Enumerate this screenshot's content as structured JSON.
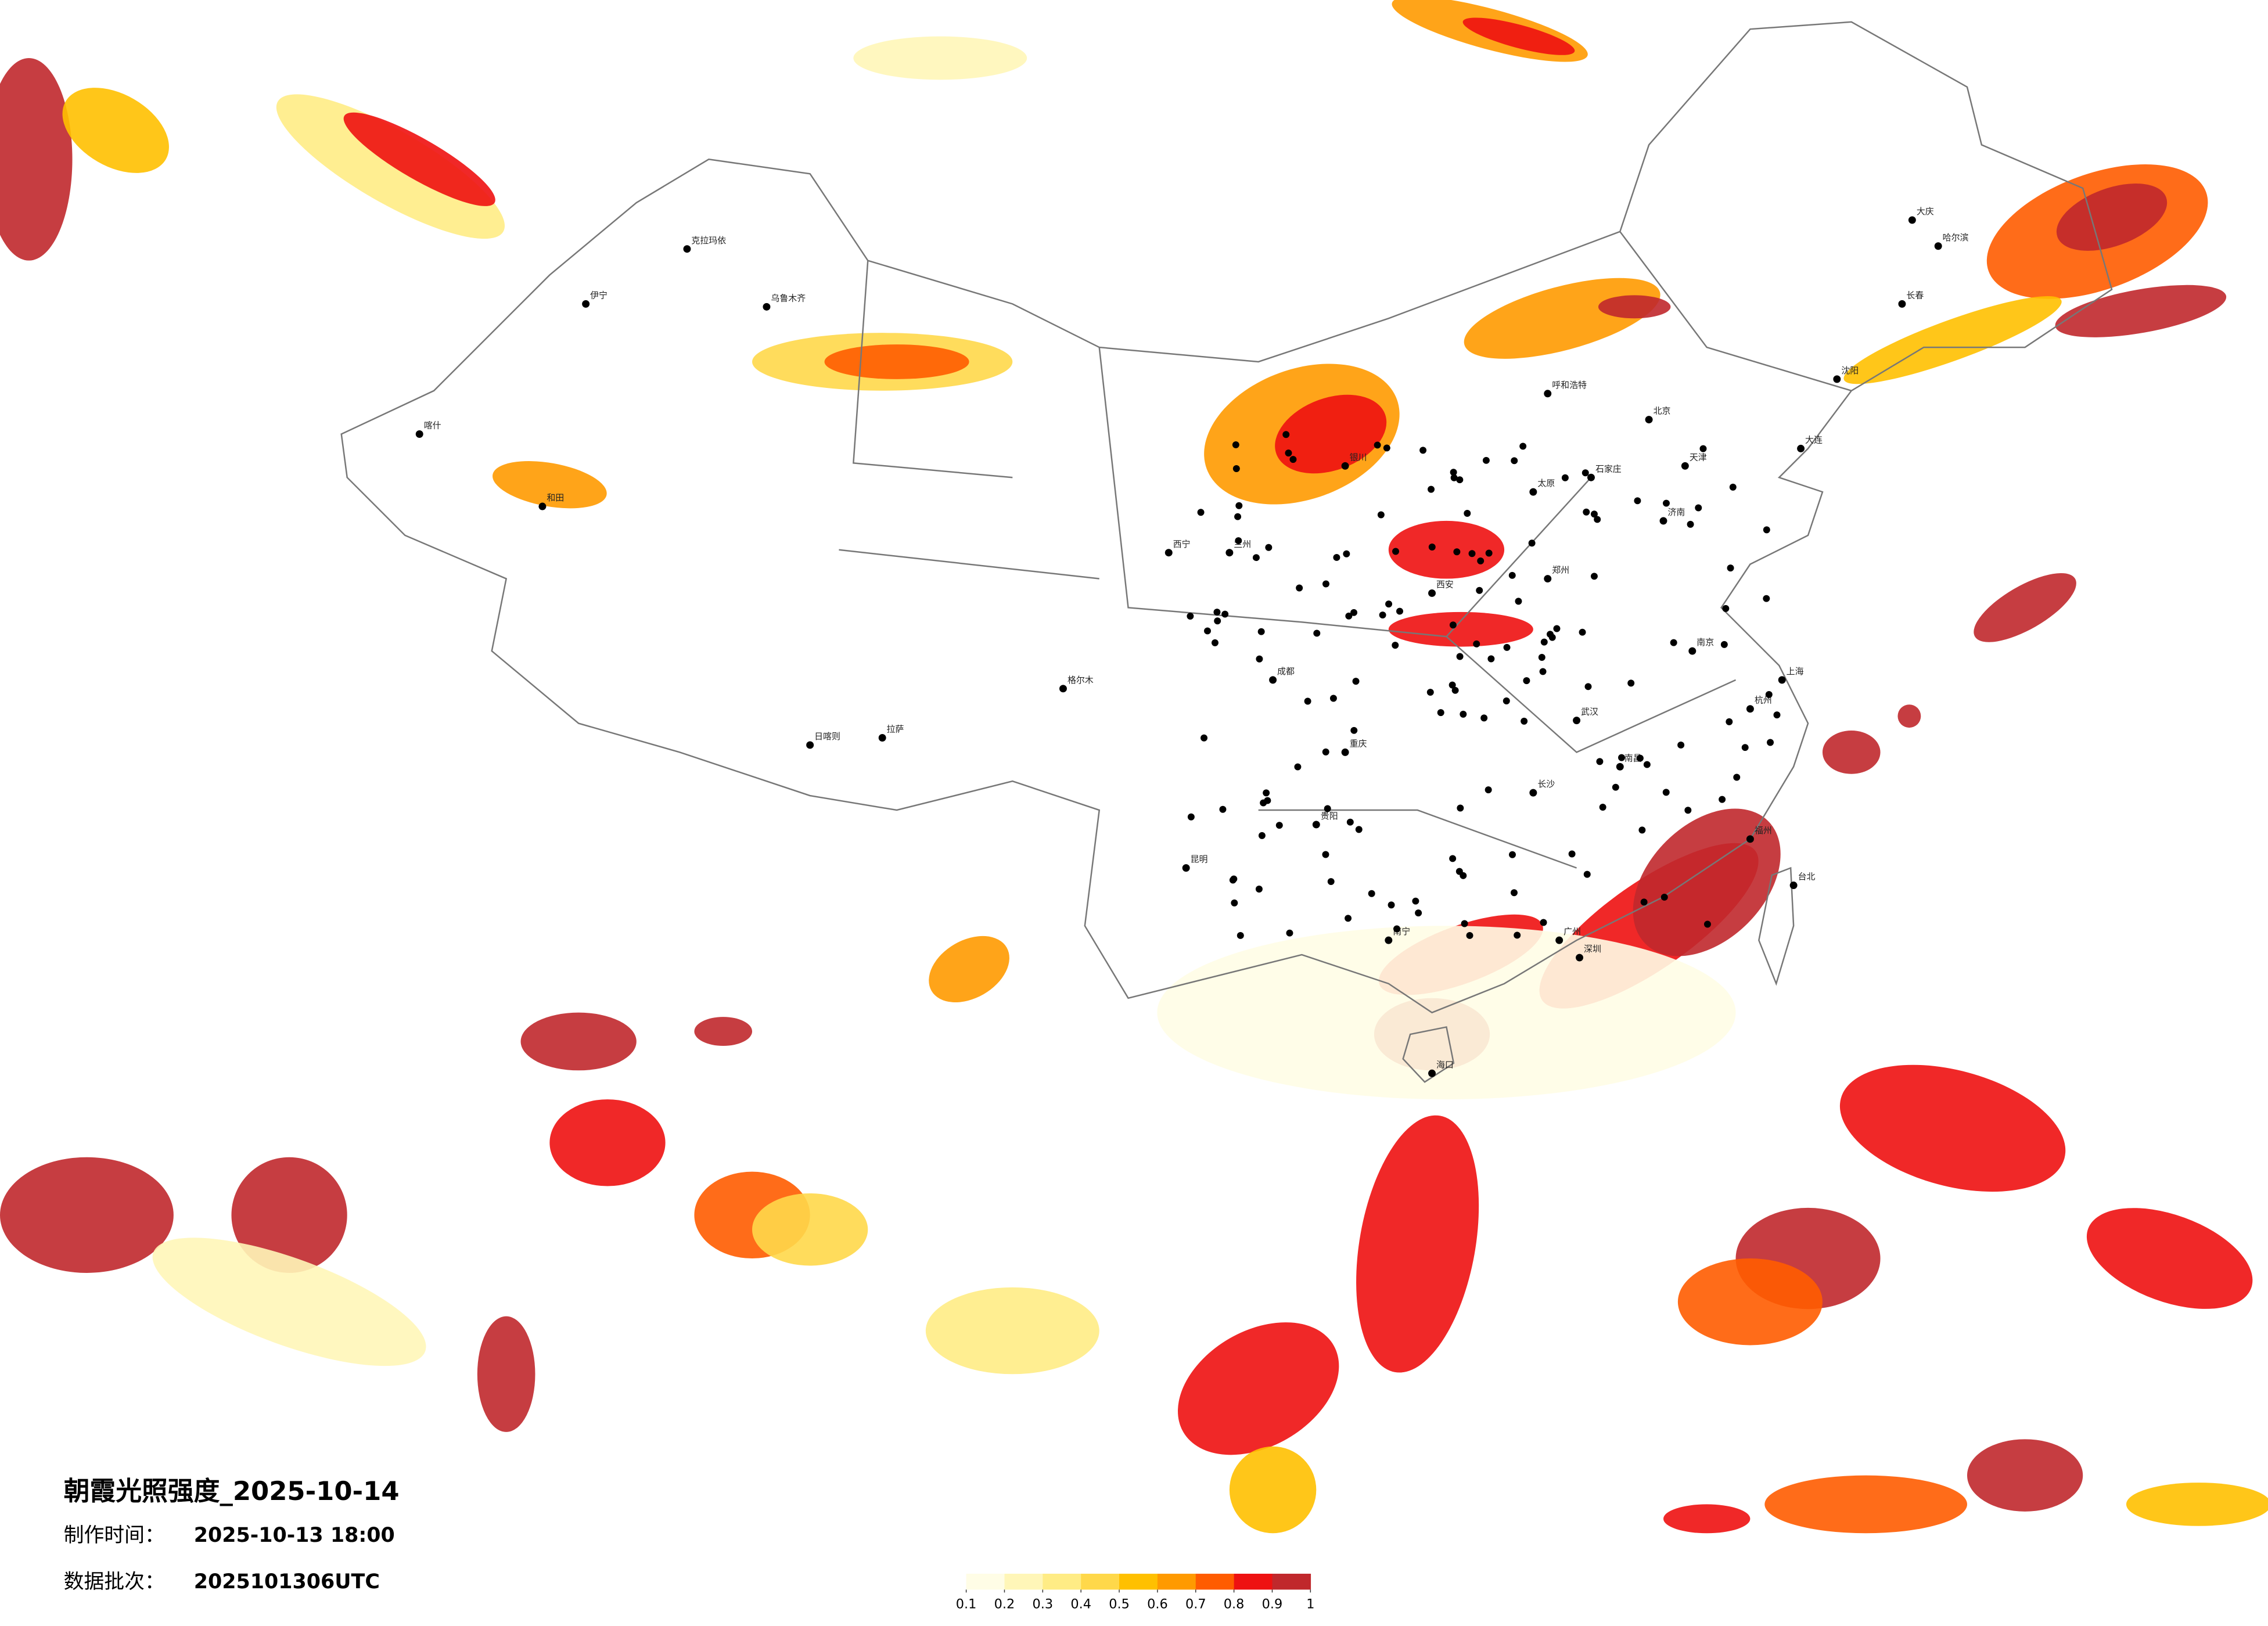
{
  "title": "朝霞光照强度_2025-10-14",
  "meta": [
    {
      "label": "制作时间：",
      "value": "2025-10-13 18:00"
    },
    {
      "label": "数据批次：",
      "value": "2025101306UTC"
    }
  ],
  "legend": {
    "colors": [
      "#fffde6",
      "#fff6b8",
      "#ffec85",
      "#ffd84a",
      "#ffc000",
      "#ff9a00",
      "#ff5c00",
      "#ee1111",
      "#c0282c"
    ],
    "ticks": [
      0.1,
      0.2,
      0.3,
      0.4,
      0.5,
      0.6,
      0.7,
      0.8,
      0.9,
      1
    ]
  },
  "cities": [
    "北京",
    "天津",
    "上海",
    "广州",
    "深圳",
    "武汉",
    "成都",
    "重庆",
    "西安",
    "拉萨",
    "乌鲁木齐",
    "哈尔滨",
    "长春",
    "沈阳",
    "昆明",
    "贵阳",
    "南宁",
    "长沙",
    "南昌",
    "福州",
    "杭州",
    "南京",
    "济南",
    "郑州",
    "太原",
    "石家庄",
    "呼和浩特",
    "银川",
    "兰州",
    "西宁",
    "台北",
    "海口",
    "喀什",
    "伊宁",
    "克拉玛依",
    "和田",
    "日喀则",
    "格尔木",
    "大庆",
    "大连"
  ]
}
